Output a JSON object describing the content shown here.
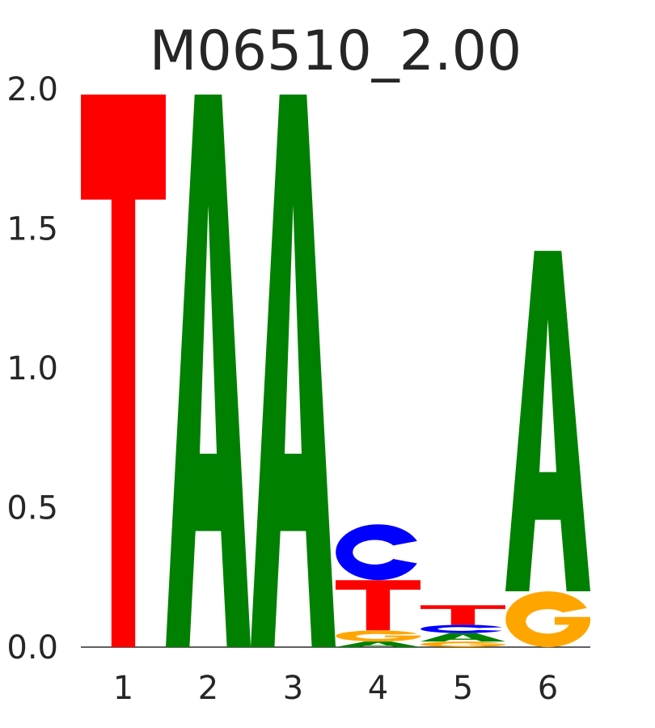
{
  "chart_data": {
    "type": "sequence-logo",
    "title": "M06510_2.00",
    "xlabel": "",
    "ylabel": "",
    "ylim": [
      0,
      2.0
    ],
    "yticks": [
      "0.0",
      "0.5",
      "1.0",
      "1.5",
      "2.0"
    ],
    "positions": [
      "1",
      "2",
      "3",
      "4",
      "5",
      "6"
    ],
    "colors": {
      "A": "#008000",
      "C": "#0000ff",
      "G": "#ffa500",
      "T": "#ff0000"
    },
    "stacks": [
      [
        {
          "letter": "T",
          "height": 1.98
        }
      ],
      [
        {
          "letter": "A",
          "height": 1.98
        }
      ],
      [
        {
          "letter": "A",
          "height": 1.98
        }
      ],
      [
        {
          "letter": "A",
          "height": 0.02
        },
        {
          "letter": "G",
          "height": 0.04
        },
        {
          "letter": "T",
          "height": 0.18
        },
        {
          "letter": "C",
          "height": 0.2
        }
      ],
      [
        {
          "letter": "G",
          "height": 0.02
        },
        {
          "letter": "A",
          "height": 0.03
        },
        {
          "letter": "C",
          "height": 0.03
        },
        {
          "letter": "T",
          "height": 0.07
        }
      ],
      [
        {
          "letter": "G",
          "height": 0.2
        },
        {
          "letter": "A",
          "height": 1.22
        }
      ]
    ],
    "grid": false,
    "legend": "none"
  }
}
